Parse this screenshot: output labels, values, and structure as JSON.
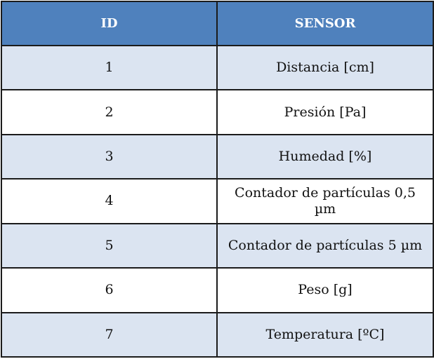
{
  "table": {
    "headers": [
      "ID",
      "SENSOR"
    ],
    "rows": [
      {
        "id": "1",
        "sensor": "Distancia [cm]"
      },
      {
        "id": "2",
        "sensor": "Presión [Pa]"
      },
      {
        "id": "3",
        "sensor": "Humedad [%]"
      },
      {
        "id": "4",
        "sensor": "Contador de partículas 0,5 µm"
      },
      {
        "id": "5",
        "sensor": "Contador de partículas 5 µm"
      },
      {
        "id": "6",
        "sensor": "Peso [g]"
      },
      {
        "id": "7",
        "sensor": "Temperatura [ºC]"
      }
    ]
  }
}
